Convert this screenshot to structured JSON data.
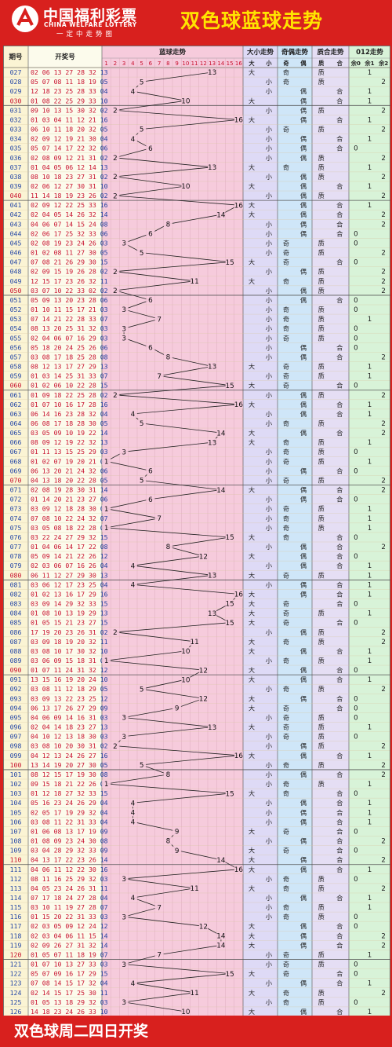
{
  "header": {
    "logo_cn": "中国福利彩票",
    "logo_en": "CHINA WELFARE LOTTERY",
    "logo_sub": "一定中走势图",
    "title": "双色球蓝球走势"
  },
  "footer": {
    "text": "双色球周二四日开奖"
  },
  "colors": {
    "brand_red": "#d8201e",
    "title_yellow": "#ffe400",
    "blue_zone": "#f6cbdc",
    "size_zone": "#dedaf6",
    "parity_zone": "#cfe6f8",
    "prime_zone": "#e5def4",
    "mod_zone": "#d8f3d8",
    "period_col": "#fbf4d4",
    "numbers_col": "#fcfbec",
    "period_text": "#2446a6",
    "trace_line": "#222222"
  },
  "table": {
    "col_period": "期号",
    "col_numbers": "开奖号",
    "col_blue": "蓝球走势",
    "col_size": "大小走势",
    "col_parity": "奇偶走势",
    "col_prime": "质合走势",
    "col_mod": "012走势",
    "blue_ticks": [
      "1",
      "2",
      "3",
      "4",
      "5",
      "6",
      "7",
      "8",
      "9",
      "10",
      "11",
      "12",
      "13",
      "14",
      "15",
      "16"
    ],
    "size_sub": [
      "大",
      "小"
    ],
    "parity_sub": [
      "奇",
      "偶"
    ],
    "prime_sub": [
      "质",
      "合"
    ],
    "mod_sub": [
      "余0",
      "余1",
      "余2"
    ]
  },
  "chart_data": {
    "type": "table",
    "title": "双色球蓝球走势",
    "xlabel": "蓝球走势",
    "ylabel": "期号",
    "ylim": [
      1,
      16
    ],
    "periods": [
      "027",
      "028",
      "029",
      "030",
      "031",
      "032",
      "033",
      "034",
      "035",
      "036",
      "037",
      "038",
      "039",
      "040",
      "041",
      "042",
      "043",
      "044",
      "045",
      "046",
      "047",
      "048",
      "049",
      "050",
      "051",
      "052",
      "053",
      "054",
      "055",
      "056",
      "057",
      "058",
      "059",
      "060",
      "061",
      "062",
      "063",
      "064",
      "065",
      "066",
      "067",
      "068",
      "069",
      "070",
      "071",
      "072",
      "073",
      "074",
      "075",
      "076",
      "077",
      "078",
      "079",
      "080",
      "081",
      "082",
      "083",
      "084",
      "085",
      "086",
      "087",
      "088",
      "089",
      "090",
      "091",
      "092",
      "093",
      "094",
      "095",
      "096",
      "097",
      "098",
      "099",
      "100",
      "101",
      "102",
      "103",
      "104",
      "105",
      "106",
      "107",
      "108",
      "109",
      "110",
      "111",
      "112",
      "113",
      "114",
      "115",
      "116",
      "117",
      "118",
      "119",
      "120",
      "121",
      "122",
      "123",
      "124",
      "125",
      "126"
    ],
    "reds": [
      "02 06 13 27 28 32",
      "05 07 08 11 18 19",
      "12 18 23 25 28 33",
      "01 08 22 25 29 33",
      "09 10 13 15 30 32",
      "01 03 04 11 12 21",
      "06 10 11 18 20 32",
      "02 09 12 19 21 30",
      "05 07 14 17 22 32",
      "02 08 09 12 21 31",
      "01 04 05 06 12 14",
      "08 10 18 23 27 31",
      "02 06 12 27 30 31",
      "11 14 18 19 23 26",
      "02 09 12 22 25 33",
      "02 04 05 14 26 32",
      "04 06 07 14 15 24",
      "02 06 17 25 32 33",
      "02 08 19 23 24 26",
      "01 02 08 11 27 30",
      "07 08 21 26 29 30",
      "02 09 15 19 26 28",
      "12 15 17 23 26 32",
      "03 07 10 22 33 02",
      "05 09 13 20 23 28",
      "01 10 11 15 17 21",
      "07 14 21 22 28 33",
      "08 13 20 25 31 32",
      "02 04 06 07 16 29",
      "05 18 20 24 25 26",
      "03 08 17 18 25 28",
      "08 12 13 17 27 29",
      "01 03 14 25 31 33",
      "01 02 06 10 22 28",
      "01 09 18 22 25 28",
      "01 07 10 16 17 28",
      "06 14 16 23 28 32",
      "06 08 17 18 28 30",
      "03 05 09 10 19 22",
      "08 09 12 19 22 32",
      "01 11 13 15 25 29",
      "01 02 07 19 20 21",
      "06 13 20 21 24 32",
      "04 13 18 20 22 28",
      "02 08 19 28 30 31",
      "01 14 20 21 23 27",
      "03 09 12 18 28 30",
      "07 08 10 22 24 32",
      "03 05 08 18 22 28",
      "03 22 24 27 29 32",
      "01 04 06 14 17 22",
      "05 09 14 21 22 26",
      "02 03 06 07 16 26",
      "06 11 12 27 29 30",
      "03 06 12 17 23 25",
      "01 02 13 16 17 29",
      "03 09 14 29 32 33",
      "01 08 10 13 19 29",
      "01 05 15 21 23 27",
      "17 19 20 23 26 31",
      "03 09 18 19 20 32",
      "03 08 10 17 30 32",
      "03 06 09 15 18 31",
      "01 07 11 24 31 32",
      "13 15 16 19 20 24",
      "03 08 11 12 18 29",
      "03 09 13 22 23 25",
      "06 13 17 26 27 29",
      "04 06 09 14 16 31",
      "02 04 14 18 23 27",
      "04 10 12 13 18 30",
      "03 08 10 20 30 31",
      "04 12 13 24 26 27",
      "13 14 19 20 27 30",
      "08 12 15 17 19 30",
      "09 15 18 21 22 26",
      "01 12 18 27 32 33",
      "05 16 23 24 26 29",
      "02 05 17 19 29 32",
      "03 08 11 22 31 33",
      "01 06 08 13 17 19",
      "01 08 09 23 24 30",
      "03 04 28 29 32 33",
      "04 13 17 22 23 26",
      "04 06 11 12 22 30",
      "08 11 16 25 29 32",
      "04 05 23 24 26 31",
      "07 17 18 24 27 28",
      "03 10 11 19 27 28",
      "01 15 20 22 31 33",
      "02 03 05 09 12 24",
      "02 03 04 06 11 15",
      "02 09 26 27 31 32",
      "01 05 07 11 18 19",
      "01 07 10 13 27 33",
      "05 07 09 16 17 29",
      "07 08 14 15 17 32",
      "02 14 15 17 25 30",
      "01 05 13 18 29 32",
      "14 18 23 24 26 33"
    ],
    "values": [
      13,
      5,
      4,
      10,
      2,
      16,
      5,
      4,
      6,
      2,
      13,
      2,
      10,
      2,
      16,
      14,
      8,
      6,
      3,
      5,
      15,
      2,
      11,
      2,
      6,
      3,
      7,
      3,
      3,
      6,
      8,
      13,
      7,
      15,
      2,
      16,
      4,
      5,
      14,
      13,
      3,
      1,
      6,
      5,
      14,
      6,
      1,
      7,
      1,
      15,
      8,
      12,
      4,
      13,
      4,
      16,
      15,
      13,
      15,
      2,
      11,
      10,
      1,
      12,
      10,
      5,
      12,
      9,
      3,
      13,
      3,
      2,
      16,
      5,
      8,
      1,
      15,
      4,
      4,
      4,
      9,
      8,
      9,
      14,
      16,
      3,
      11,
      4,
      7,
      3,
      12,
      14,
      14,
      7,
      3,
      15,
      4,
      11,
      3,
      10
    ]
  }
}
